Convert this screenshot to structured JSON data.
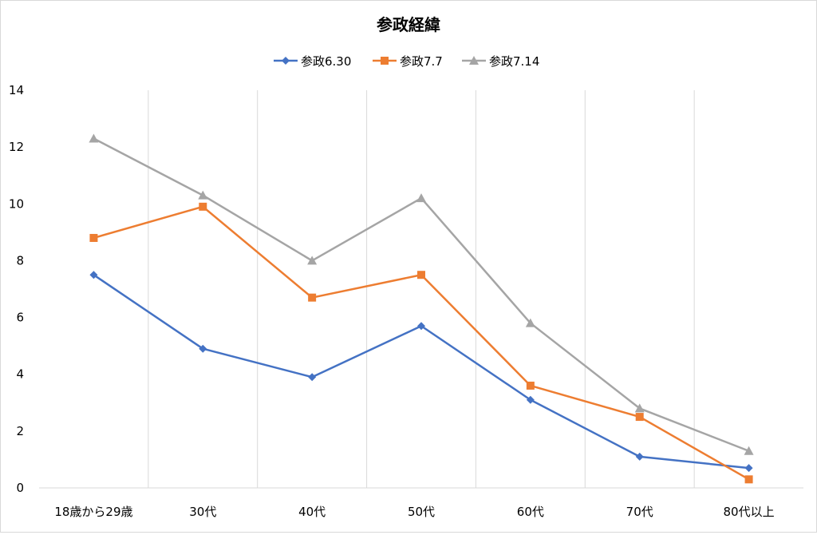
{
  "chart_data": {
    "type": "line",
    "title": "参政経緯",
    "xlabel": "",
    "ylabel": "",
    "categories": [
      "18歳から29歳",
      "30代",
      "40代",
      "50代",
      "60代",
      "70代",
      "80代以上"
    ],
    "ylim": [
      0,
      14
    ],
    "yticks": [
      "0",
      "2",
      "4",
      "6",
      "8",
      "10",
      "12",
      "14"
    ],
    "grid": "vertical",
    "legend_position": "top",
    "series": [
      {
        "name": "参政6.30",
        "color": "#4472c4",
        "marker": "diamond",
        "values": [
          7.5,
          4.9,
          3.9,
          5.7,
          3.1,
          1.1,
          0.7
        ]
      },
      {
        "name": "参政7.7",
        "color": "#ed7d31",
        "marker": "square",
        "values": [
          8.8,
          9.9,
          6.7,
          7.5,
          3.6,
          2.5,
          0.3
        ]
      },
      {
        "name": "参政7.14",
        "color": "#a5a5a5",
        "marker": "triangle",
        "values": [
          12.3,
          10.3,
          8.0,
          10.2,
          5.8,
          2.8,
          1.3
        ]
      }
    ]
  }
}
